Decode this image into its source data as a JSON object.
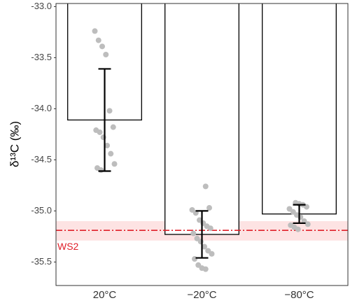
{
  "chart_data": {
    "type": "bar",
    "ylabel": "δ¹³C (‰)",
    "categories": [
      "20°C",
      "−20°C",
      "−80°C"
    ],
    "values": [
      -34.11,
      -35.23,
      -35.03
    ],
    "errors": [
      0.5,
      0.23,
      0.09
    ],
    "bar_fill": "#ffffff",
    "bar_edge": "#000000",
    "point_color": "#bdbdbd",
    "points": [
      [
        -33.24,
        -33.33,
        -33.39,
        -33.47,
        -34.02,
        -34.18,
        -34.21,
        -34.23,
        -34.28,
        -34.36,
        -34.44,
        -34.54,
        -34.58,
        -34.6
      ],
      [
        -34.76,
        -34.97,
        -34.99,
        -35.02,
        -35.09,
        -35.12,
        -35.15,
        -35.17,
        -35.22,
        -35.27,
        -35.3,
        -35.35,
        -35.39,
        -35.42,
        -35.47,
        -35.53,
        -35.56,
        -35.57
      ],
      [
        -34.92,
        -34.93,
        -34.94,
        -34.96,
        -34.98,
        -35.01,
        -35.04,
        -35.06,
        -35.1,
        -35.13,
        -35.14,
        -35.16,
        -35.18
      ]
    ],
    "reference": {
      "label": "WS2",
      "value": -35.19,
      "band": [
        -35.1,
        -35.29
      ],
      "color": "#e0202a",
      "band_color": "#fde3e3"
    },
    "ylim": [
      -35.73,
      -32.97
    ],
    "yticks": [
      {
        "value": -33,
        "label": "-33.0"
      },
      {
        "value": -33.5,
        "label": "-33.5"
      },
      {
        "value": -34,
        "label": "-34.0"
      },
      {
        "value": -34.5,
        "label": "-34.5"
      },
      {
        "value": -35,
        "label": "-35.0"
      },
      {
        "value": -35.5,
        "label": "-35.5"
      }
    ]
  }
}
